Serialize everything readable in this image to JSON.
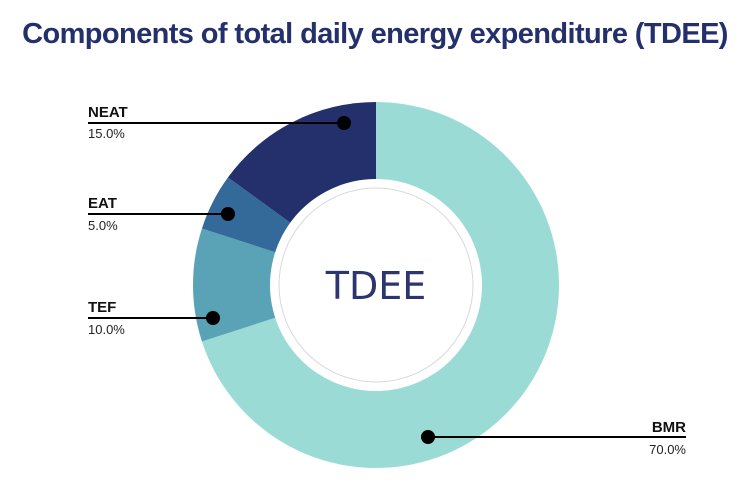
{
  "chart_data": {
    "type": "pie",
    "title": "Components of total daily energy expenditure (TDEE)",
    "center_label": "TDEE",
    "slices": [
      {
        "label": "BMR",
        "value": 70.0,
        "display": "70.0%",
        "color": "#9adcd5"
      },
      {
        "label": "TEF",
        "value": 10.0,
        "display": "10.0%",
        "color": "#5aa3b6"
      },
      {
        "label": "EAT",
        "value": 5.0,
        "display": "5.0%",
        "color": "#336a9a"
      },
      {
        "label": "NEAT",
        "value": 15.0,
        "display": "15.0%",
        "color": "#24306b"
      }
    ]
  }
}
